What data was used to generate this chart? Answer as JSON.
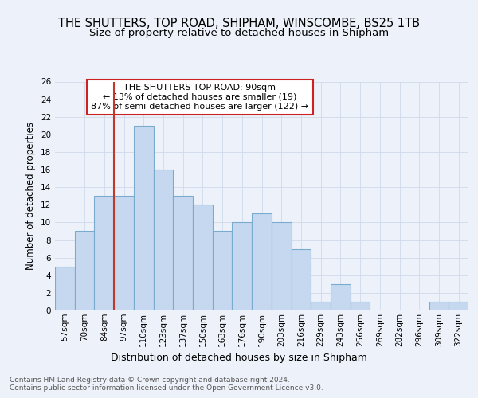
{
  "title1": "THE SHUTTERS, TOP ROAD, SHIPHAM, WINSCOMBE, BS25 1TB",
  "title2": "Size of property relative to detached houses in Shipham",
  "xlabel": "Distribution of detached houses by size in Shipham",
  "ylabel": "Number of detached properties",
  "categories": [
    "57sqm",
    "70sqm",
    "84sqm",
    "97sqm",
    "110sqm",
    "123sqm",
    "137sqm",
    "150sqm",
    "163sqm",
    "176sqm",
    "190sqm",
    "203sqm",
    "216sqm",
    "229sqm",
    "243sqm",
    "256sqm",
    "269sqm",
    "282sqm",
    "296sqm",
    "309sqm",
    "322sqm"
  ],
  "values": [
    5,
    9,
    13,
    13,
    21,
    16,
    13,
    12,
    9,
    10,
    11,
    10,
    7,
    1,
    3,
    1,
    0,
    0,
    0,
    1,
    1
  ],
  "bar_color": "#c5d8f0",
  "bar_edge_color": "#7aabcf",
  "grid_color": "#d0daea",
  "background_color": "#edf2fa",
  "vline_color": "#c0392b",
  "annotation_text": "THE SHUTTERS TOP ROAD: 90sqm\n← 13% of detached houses are smaller (19)\n87% of semi-detached houses are larger (122) →",
  "annotation_box_color": "#ffffff",
  "annotation_box_edge": "#cc2222",
  "ylim": [
    0,
    26
  ],
  "yticks": [
    0,
    2,
    4,
    6,
    8,
    10,
    12,
    14,
    16,
    18,
    20,
    22,
    24,
    26
  ],
  "footnote": "Contains HM Land Registry data © Crown copyright and database right 2024.\nContains public sector information licensed under the Open Government Licence v3.0.",
  "title1_fontsize": 10.5,
  "title2_fontsize": 9.5,
  "xlabel_fontsize": 9,
  "ylabel_fontsize": 8.5,
  "tick_fontsize": 7.5,
  "annot_fontsize": 8,
  "footnote_fontsize": 6.5,
  "vline_x": 3.0
}
